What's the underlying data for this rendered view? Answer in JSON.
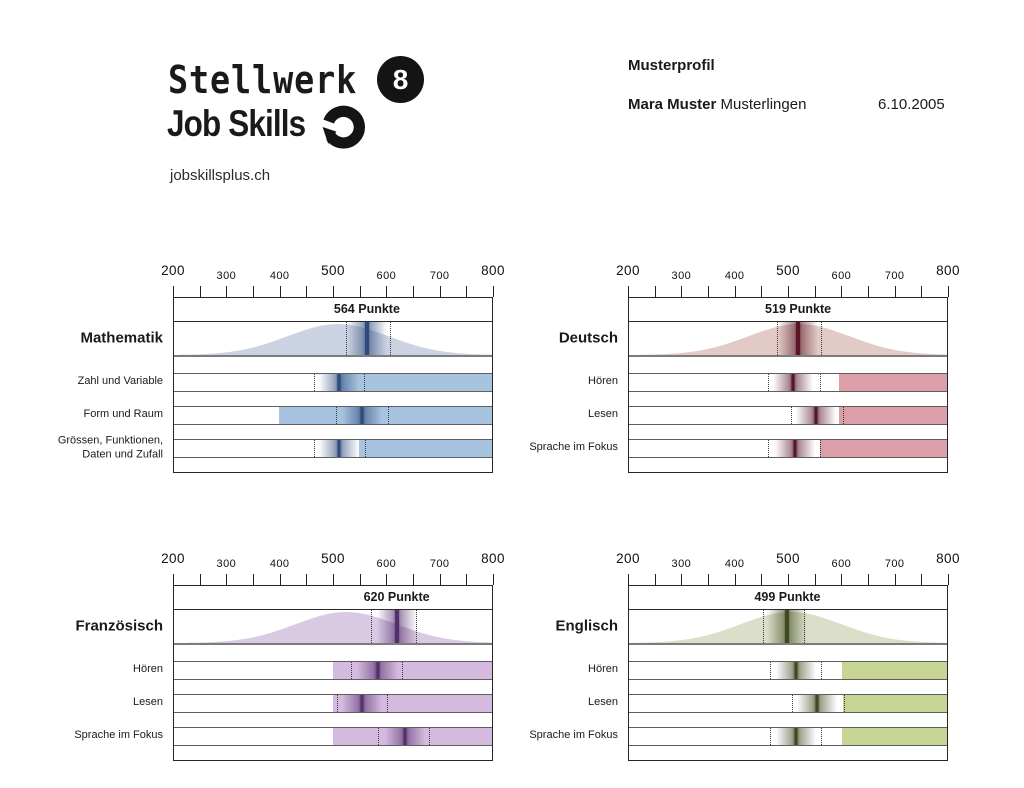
{
  "header": {
    "logo_title": "Stellwerk",
    "logo_badge": "8",
    "logo_subtitle": "Job Skills",
    "website": "jobskillsplus.ch",
    "profile_label": "Musterprofil",
    "name": "Mara Muster",
    "place": "Musterlingen",
    "date": "6.10.2005"
  },
  "axis": {
    "min": 200,
    "max": 800,
    "minor_step": 50,
    "labels": [
      "200",
      "300",
      "400",
      "500",
      "600",
      "700",
      "800"
    ]
  },
  "chart_data": [
    {
      "type": "score-profile",
      "subject": "Mathematik",
      "score": 564,
      "score_label": "564 Punkte",
      "ci": [
        524,
        608
      ],
      "curve_center": 510,
      "colors": {
        "band": "#a7c3df",
        "line": "#2e4b7b",
        "bell": "#cbd3e3"
      },
      "skills": [
        {
          "name": "Zahl und Variable",
          "score": 511,
          "ci": [
            464,
            558
          ],
          "band": [
            508,
            800
          ]
        },
        {
          "name": "Form und Raum",
          "score": 554,
          "ci": [
            506,
            603
          ],
          "band": [
            398,
            800
          ]
        },
        {
          "name": "Grössen, Funktionen,\nDaten und Zufall",
          "score": 511,
          "ci": [
            464,
            560
          ],
          "band": [
            549,
            800
          ]
        }
      ]
    },
    {
      "type": "score-profile",
      "subject": "Deutsch",
      "score": 519,
      "score_label": "519 Punkte",
      "ci": [
        480,
        562
      ],
      "curve_center": 520,
      "colors": {
        "band": "#dc9fa9",
        "line": "#571728",
        "bell": "#e2cbc6"
      },
      "skills": [
        {
          "name": "Hören",
          "score": 509,
          "ci": [
            462,
            560
          ],
          "band": [
            597,
            800
          ]
        },
        {
          "name": "Lesen",
          "score": 553,
          "ci": [
            506,
            603
          ],
          "band": [
            597,
            800
          ]
        },
        {
          "name": "Sprache im Fokus",
          "score": 513,
          "ci": [
            462,
            560
          ],
          "band": [
            560,
            800
          ]
        }
      ]
    },
    {
      "type": "score-profile",
      "subject": "Französisch",
      "score": 620,
      "score_label": "620 Punkte",
      "ci": [
        572,
        656
      ],
      "curve_center": 525,
      "colors": {
        "band": "#d5badf",
        "line": "#53306b",
        "bell": "#d9c9e2"
      },
      "skills": [
        {
          "name": "Hören",
          "score": 584,
          "ci": [
            534,
            631
          ],
          "band": [
            500,
            800
          ]
        },
        {
          "name": "Lesen",
          "score": 554,
          "ci": [
            507,
            601
          ],
          "band": [
            500,
            800
          ]
        },
        {
          "name": "Sprache im Fokus",
          "score": 635,
          "ci": [
            584,
            682
          ],
          "band": [
            500,
            800
          ]
        }
      ]
    },
    {
      "type": "score-profile",
      "subject": "Englisch",
      "score": 499,
      "score_label": "499 Punkte",
      "ci": [
        452,
        530
      ],
      "curve_center": 505,
      "colors": {
        "band": "#c6d494",
        "line": "#404a21",
        "bell": "#dbdec8"
      },
      "skills": [
        {
          "name": "Hören",
          "score": 515,
          "ci": [
            466,
            563
          ],
          "band": [
            601,
            800
          ]
        },
        {
          "name": "Lesen",
          "score": 555,
          "ci": [
            507,
            605
          ],
          "band": [
            603,
            800
          ]
        },
        {
          "name": "Sprache im Fokus",
          "score": 515,
          "ci": [
            466,
            563
          ],
          "band": [
            601,
            800
          ]
        }
      ]
    }
  ]
}
